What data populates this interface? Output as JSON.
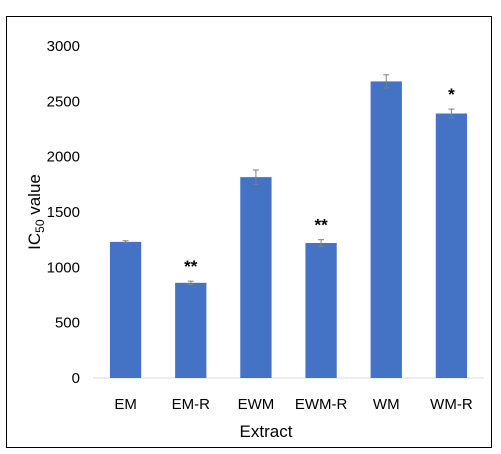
{
  "chart_data": {
    "type": "bar",
    "categories": [
      "EM",
      "EM-R",
      "EWM",
      "EWM-R",
      "WM",
      "WM-R"
    ],
    "values": [
      1230,
      860,
      1815,
      1220,
      2680,
      2390
    ],
    "errors": [
      10,
      15,
      65,
      30,
      60,
      40
    ],
    "annotations": [
      "",
      "**",
      "",
      "**",
      "",
      "*"
    ],
    "ylabel": {
      "main": "IC",
      "subscript": "50",
      "suffix": " value"
    },
    "xlabel": "Extract",
    "ylim": [
      0,
      3000
    ],
    "yticks": [
      0,
      500,
      1000,
      1500,
      2000,
      2500,
      3000
    ],
    "grid": false,
    "bar_color": "#4472C4",
    "error_bar_color": "#7f7f7f"
  }
}
